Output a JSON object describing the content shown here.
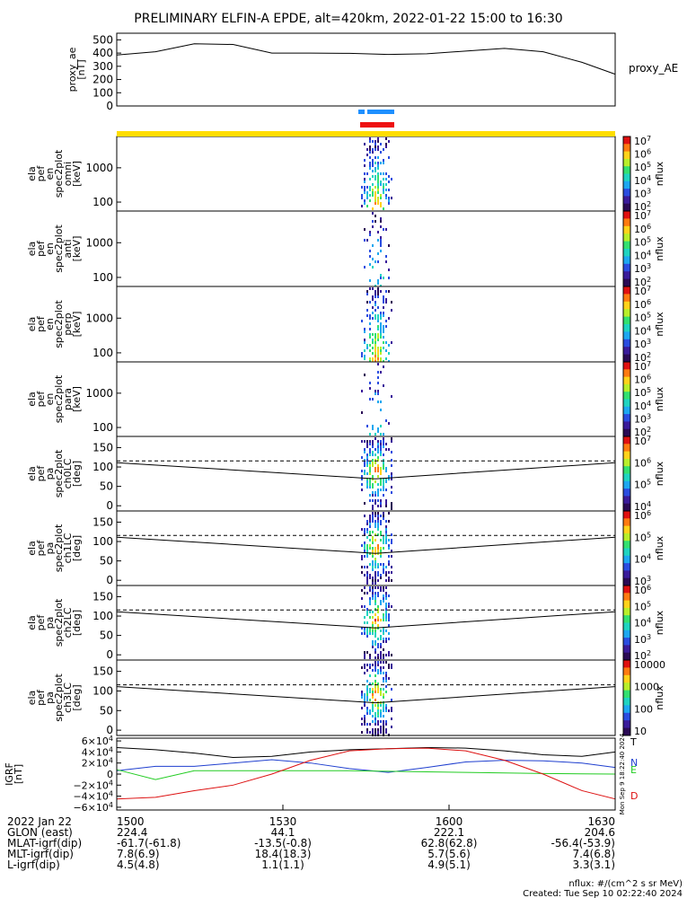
{
  "title": "PRELIMINARY ELFIN-A EPDE, alt=420km, 2022-01-22 15:00 to 16:30",
  "colors": {
    "axis": "#000000",
    "flag_yellow": "#ffdd00",
    "flag_blue": "#1e90ff",
    "flag_red": "#ee1111",
    "grf_total": "#000000",
    "grf_n": "#1f3fcf",
    "grf_e": "#22cc22",
    "grf_d": "#dd1111"
  },
  "chart_data": [
    {
      "type": "line",
      "ylabel": "proxy_ae\n[nT]",
      "legend": "proxy_AE",
      "yticks": [
        "500",
        "400",
        "300",
        "200",
        "100",
        "0"
      ],
      "ylim": [
        0,
        550
      ],
      "x_minutes": [
        0,
        7,
        14,
        21,
        28,
        35,
        42,
        49,
        56,
        63,
        70,
        77,
        84,
        90
      ],
      "values": [
        385,
        410,
        470,
        465,
        400,
        400,
        398,
        390,
        395,
        415,
        435,
        410,
        330,
        240
      ]
    },
    {
      "type": "heatmap",
      "ylabel": "ela\npef\nen\nspec2plot\nomni\n[keV]",
      "yticks": [
        "1000",
        "100"
      ],
      "colorbar": {
        "label": "nflux",
        "ticks": [
          "10^7",
          "10^6",
          "10^5",
          "10^4",
          "10^3",
          "10^2"
        ]
      }
    },
    {
      "type": "heatmap",
      "ylabel": "ela\npef\nen\nspec2plot\nanti\n[keV]",
      "yticks": [
        "1000",
        "100"
      ],
      "colorbar": {
        "label": "nflux",
        "ticks": [
          "10^7",
          "10^6",
          "10^5",
          "10^4",
          "10^3",
          "10^2"
        ]
      }
    },
    {
      "type": "heatmap",
      "ylabel": "ela\npef\nen\nspec2plot\nperp\n[keV]",
      "yticks": [
        "1000",
        "100"
      ],
      "colorbar": {
        "label": "nflux",
        "ticks": [
          "10^7",
          "10^6",
          "10^5",
          "10^4",
          "10^3",
          "10^2"
        ]
      }
    },
    {
      "type": "heatmap",
      "ylabel": "ela\npef\nen\nspec2plot\npara\n[keV]",
      "yticks": [
        "1000",
        "100"
      ],
      "colorbar": {
        "label": "nflux",
        "ticks": [
          "10^7",
          "10^6",
          "10^5",
          "10^4",
          "10^3",
          "10^2"
        ]
      }
    },
    {
      "type": "heatmap",
      "ylabel": "ela\npef\npa\nspec2plot\nch0LC\n[deg]",
      "yticks": [
        "150",
        "100",
        "50",
        "0"
      ],
      "colorbar": {
        "label": "nflux",
        "ticks": [
          "10^7",
          "10^6",
          "10^5",
          "10^4"
        ]
      }
    },
    {
      "type": "heatmap",
      "ylabel": "ela\npef\npa\nspec2plot\nch1LC\n[deg]",
      "yticks": [
        "150",
        "100",
        "50",
        "0"
      ],
      "colorbar": {
        "label": "nflux",
        "ticks": [
          "10^6",
          "10^5",
          "10^4",
          "10^3"
        ]
      }
    },
    {
      "type": "heatmap",
      "ylabel": "ela\npef\npa\nspec2plot\nch2LC\n[deg]",
      "yticks": [
        "150",
        "100",
        "50",
        "0"
      ],
      "colorbar": {
        "label": "nflux",
        "ticks": [
          "10^6",
          "10^5",
          "10^4",
          "10^3",
          "10^2"
        ]
      }
    },
    {
      "type": "heatmap",
      "ylabel": "ela\npef\npa\nspec2plot\nch3LC\n[deg]",
      "yticks": [
        "150",
        "100",
        "50",
        "0"
      ],
      "colorbar": {
        "label": "nflux",
        "ticks": [
          "10000",
          "1000",
          "100",
          "10"
        ]
      }
    },
    {
      "type": "line",
      "ylabel": "IGRF\n[nT]",
      "yticks": [
        "6×10^4",
        "4×10^4",
        "2×10^4",
        "0",
        "−2×10^4",
        "−4×10^4",
        "−6×10^4"
      ],
      "ylim": [
        -65000,
        65000
      ],
      "x_minutes": [
        0,
        7,
        14,
        21,
        28,
        35,
        42,
        49,
        56,
        63,
        70,
        77,
        84,
        90
      ],
      "series": [
        {
          "name": "T",
          "values": [
            48000,
            44000,
            38000,
            30000,
            32000,
            40000,
            44000,
            46000,
            48000,
            47000,
            42000,
            35000,
            32000,
            40000
          ]
        },
        {
          "name": "N",
          "values": [
            6000,
            14000,
            14000,
            20000,
            26000,
            20000,
            10000,
            3000,
            12000,
            22000,
            25000,
            24000,
            20000,
            12000
          ]
        },
        {
          "name": "E",
          "values": [
            8000,
            -10000,
            6000,
            6000,
            6000,
            6000,
            6000,
            5000,
            4000,
            3000,
            2000,
            1000,
            500,
            0
          ]
        },
        {
          "name": "D",
          "values": [
            -45000,
            -42000,
            -30000,
            -20000,
            0,
            25000,
            42000,
            46000,
            47000,
            42000,
            25000,
            0,
            -30000,
            -45000
          ]
        }
      ],
      "right_note": "Mon Sep 9 18:22:40 2024"
    }
  ],
  "time_axis": {
    "row_labels": [
      "2022 Jan 22",
      "GLON (east)",
      "MLAT-igrf(dip)",
      "MLT-igrf(dip)",
      "L-igrf(dip)"
    ],
    "columns": [
      [
        "1500",
        "224.4",
        "-61.7(-61.8)",
        "7.8(6.9)",
        "4.5(4.8)"
      ],
      [
        "1530",
        "44.1",
        "-13.5(-0.8)",
        "18.4(18.3)",
        "1.1(1.1)"
      ],
      [
        "1600",
        "222.1",
        "62.8(62.8)",
        "5.7(5.6)",
        "4.9(5.1)"
      ],
      [
        "1630",
        "204.6",
        "-56.4(-53.9)",
        "7.4(6.8)",
        "3.3(3.1)"
      ]
    ]
  },
  "footer": {
    "units": "nflux: #/(cm^2 s sr MeV)",
    "created": "Created: Tue Sep 10 02:22:40 2024"
  }
}
